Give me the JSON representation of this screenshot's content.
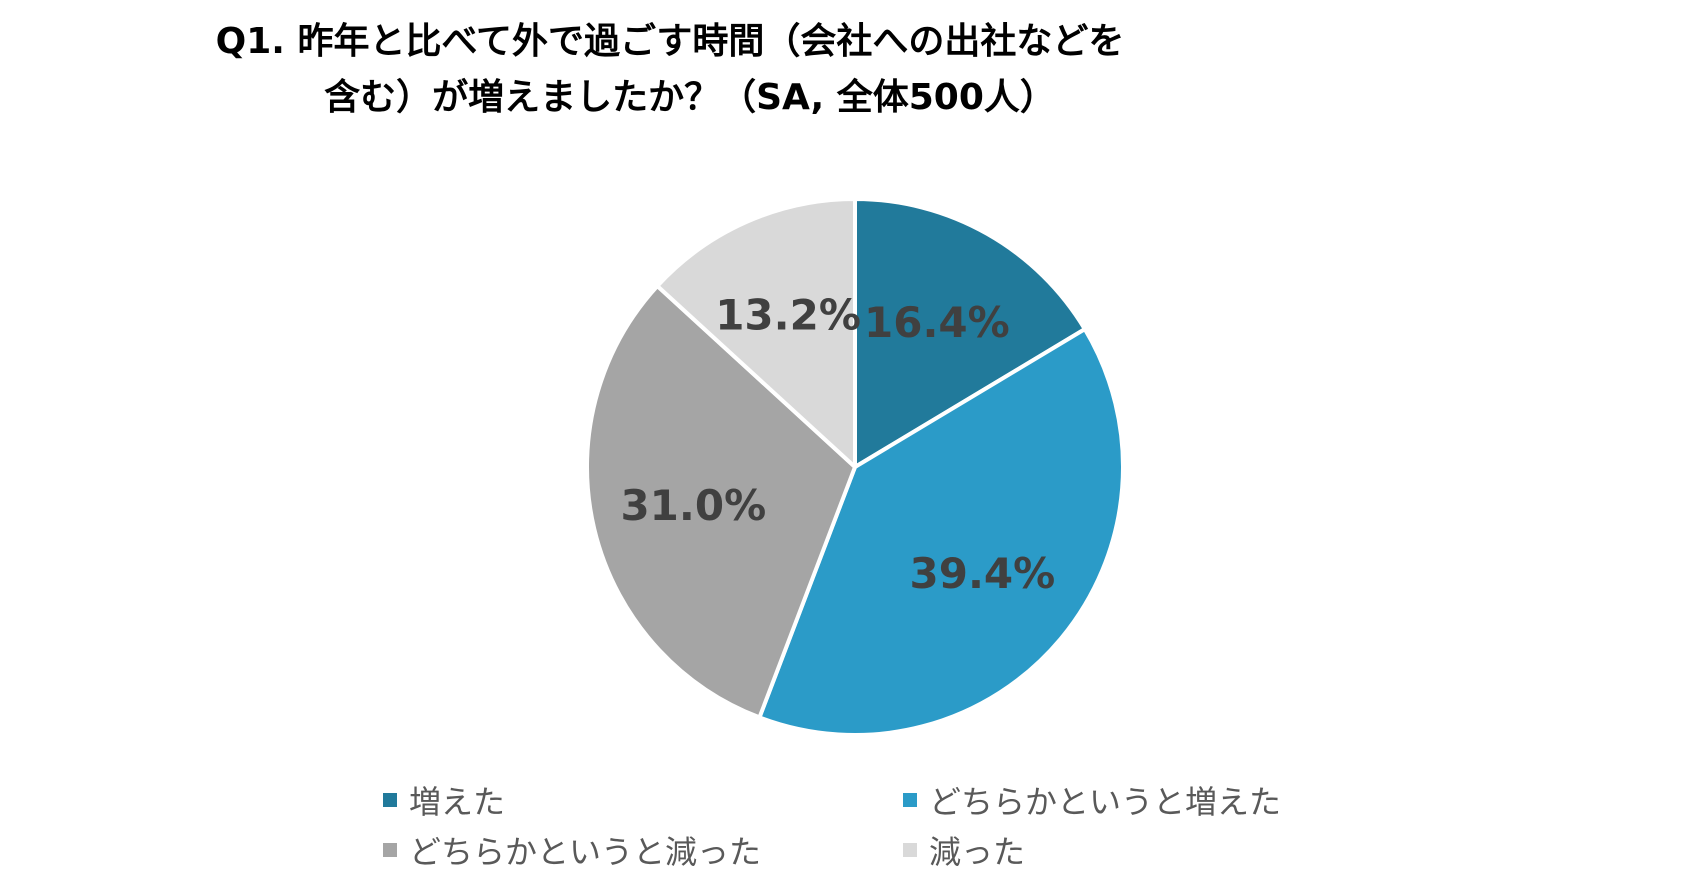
{
  "chart_data": {
    "type": "pie",
    "title_line1": "Q1. 昨年と比べて外で過ごす時間（会社への出社などを",
    "title_line2": "含む）が増えましたか？（SA, 全体500人）",
    "slices": [
      {
        "label": "増えた",
        "value": 16.4,
        "display": "16.4%",
        "color": "#217A9B"
      },
      {
        "label": "どちらかというと増えた",
        "value": 39.4,
        "display": "39.4%",
        "color": "#2B9BC8"
      },
      {
        "label": "どちらかというと減った",
        "value": 31.0,
        "display": "31.0%",
        "color": "#A5A5A5"
      },
      {
        "label": "減った",
        "value": 13.2,
        "display": "13.2%",
        "color": "#D9D9D9"
      }
    ],
    "start_angle": "12 o'clock",
    "direction": "clockwise",
    "legend_position": "bottom"
  }
}
